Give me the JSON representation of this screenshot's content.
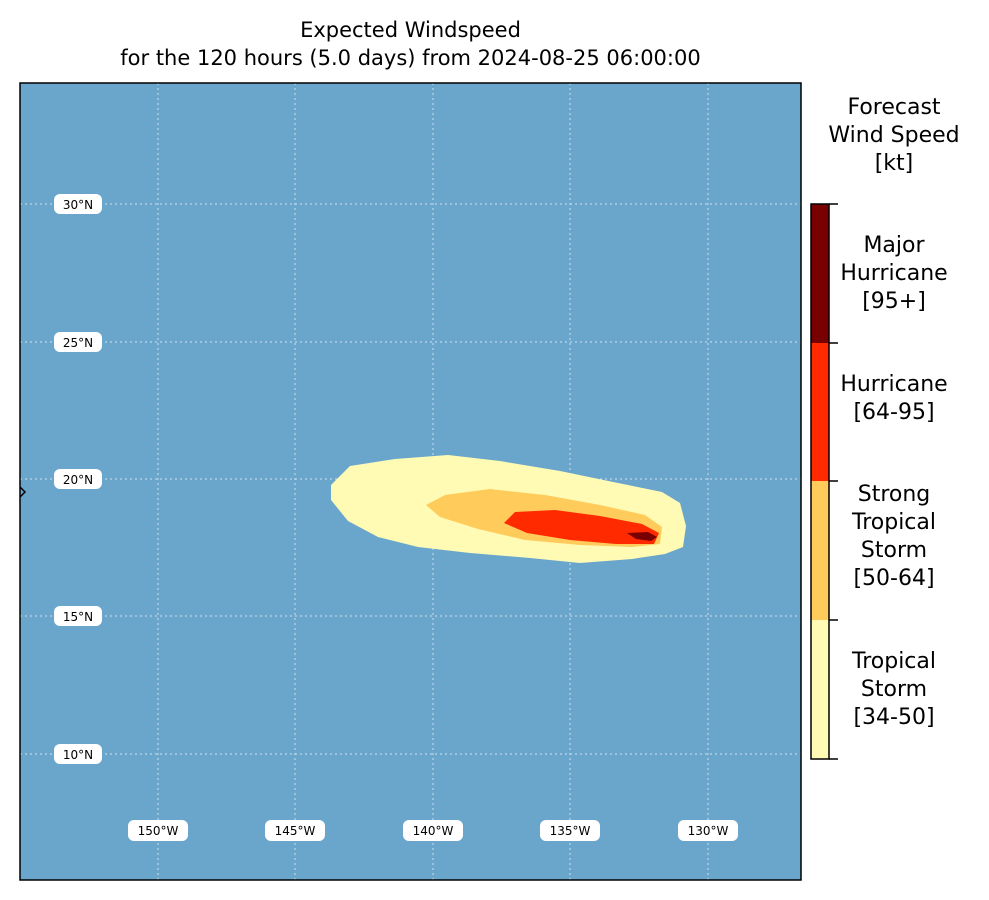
{
  "title": {
    "line1": "Expected Windspeed",
    "line2": "for the 120 hours (5.0 days) from 2024-08-25 06:00:00"
  },
  "map": {
    "ocean_color": "#6aa6cc",
    "lon_labels": [
      "150°W",
      "145°W",
      "140°W",
      "135°W",
      "130°W"
    ],
    "lat_labels": [
      "30°N",
      "25°N",
      "20°N",
      "15°N",
      "10°N"
    ]
  },
  "colorbar": {
    "title_lines": [
      "Forecast",
      "Wind Speed",
      "[kt]"
    ],
    "categories": [
      {
        "lines": [
          "Tropical",
          "Storm",
          "[34-50]"
        ],
        "color": "#fffbb4"
      },
      {
        "lines": [
          "Strong",
          "Tropical",
          "Storm",
          "[50-64]"
        ],
        "color": "#ffcc5c"
      },
      {
        "lines": [
          "Hurricane",
          "[64-95]"
        ],
        "color": "#ff2a00"
      },
      {
        "lines": [
          "Major",
          "Hurricane",
          "[95+]"
        ],
        "color": "#780000"
      }
    ]
  }
}
